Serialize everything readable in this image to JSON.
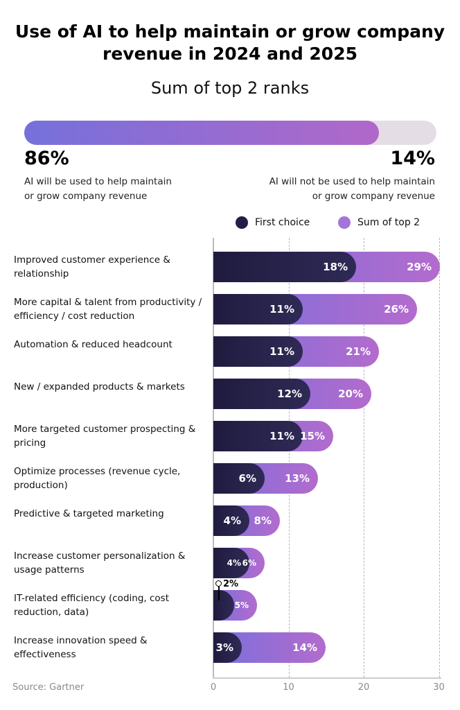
{
  "title": "Use of AI to help maintain or grow company revenue in 2024 and 2025",
  "subtitle": "Sum of top 2 ranks",
  "summary": {
    "yes_pct": 86,
    "yes_label": "86%",
    "yes_text": "AI will be used to help maintain or grow company revenue",
    "no_label": "14%",
    "no_text": "AI will not be used to help maintain or grow company revenue"
  },
  "source": "Source: Gartner",
  "colors": {
    "first": "#221e45",
    "top2": "#9b6cd6",
    "track": "#e4dde6"
  },
  "chart_data": {
    "type": "bar",
    "orientation": "horizontal",
    "legend": "top-right",
    "xlim": [
      0,
      30
    ],
    "xticks": [
      "0",
      "10",
      "20",
      "30"
    ],
    "grid": true,
    "categories": [
      "Improved customer experience & relationship",
      "More capital & talent from productivity / efficiency / cost reduction",
      "Automation & reduced headcount",
      "New / expanded products & markets",
      "More targeted customer prospecting & pricing",
      "Optimize processes (revenue cycle, production)",
      "Predictive & targeted marketing",
      "Increase customer personalization & usage patterns",
      "IT-related efficiency (coding, cost reduction, data)",
      "Increase innovation speed & effectiveness"
    ],
    "series": [
      {
        "name": "First choice",
        "values": [
          18,
          11,
          11,
          12,
          11,
          6,
          4,
          4,
          2,
          3
        ]
      },
      {
        "name": "Sum of top 2",
        "values": [
          29,
          26,
          21,
          20,
          15,
          13,
          8,
          6,
          5,
          14
        ]
      }
    ]
  }
}
